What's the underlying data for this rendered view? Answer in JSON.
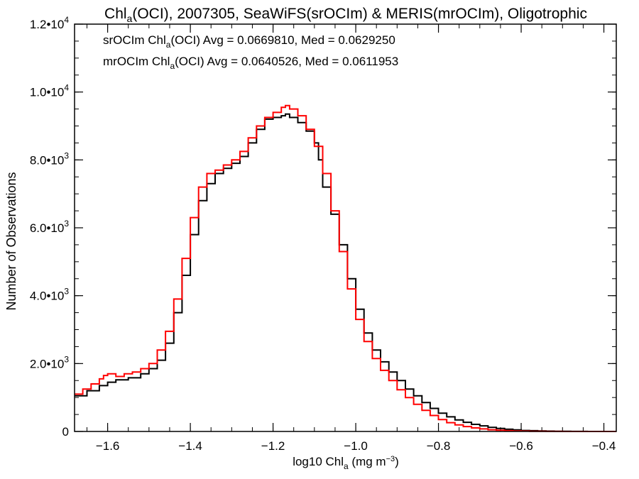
{
  "chart_data": {
    "type": "line",
    "title": {
      "main": "Chl",
      "sub": "a",
      "rest": "(OCI), 2007305, SeaWiFS(srOCIm) & MERIS(mrOCIm), Oligotrophic"
    },
    "xlabel": {
      "main": "log10 Chl",
      "sub": "a",
      "rest": " (mg m",
      "sup": "−3",
      "end": ")"
    },
    "ylabel": "Number of Observations",
    "xlim": [
      -1.68,
      -0.37
    ],
    "ylim": [
      0,
      12000
    ],
    "x_ticks": [
      {
        "value": -1.6,
        "label": "−1.6"
      },
      {
        "value": -1.4,
        "label": "−1.4"
      },
      {
        "value": -1.2,
        "label": "−1.2"
      },
      {
        "value": -1.0,
        "label": "−1.0"
      },
      {
        "value": -0.8,
        "label": "−0.8"
      },
      {
        "value": -0.6,
        "label": "−0.6"
      },
      {
        "value": -0.4,
        "label": "−0.4"
      }
    ],
    "y_ticks": [
      {
        "value": 0,
        "mant": "0",
        "exp": ""
      },
      {
        "value": 2000,
        "mant": "2.0•10",
        "exp": "3"
      },
      {
        "value": 4000,
        "mant": "4.0•10",
        "exp": "3"
      },
      {
        "value": 6000,
        "mant": "6.0•10",
        "exp": "3"
      },
      {
        "value": 8000,
        "mant": "8.0•10",
        "exp": "3"
      },
      {
        "value": 10000,
        "mant": "1.0•10",
        "exp": "4"
      },
      {
        "value": 12000,
        "mant": "1.2•10",
        "exp": "4"
      }
    ],
    "annotations": [
      {
        "color": "#000000",
        "p1": "srOCIm Chl",
        "sub": "a",
        "p2": "(OCI) Avg = 0.0669810, Med = 0.0629250"
      },
      {
        "color": "#ff0000",
        "p1": "mrOCIm Chl",
        "sub": "a",
        "p2": "(OCI) Avg = 0.0640526, Med = 0.0611953"
      }
    ],
    "series": [
      {
        "name": "srOCIm",
        "color": "#000000",
        "x": [
          -1.68,
          -1.65,
          -1.62,
          -1.6,
          -1.58,
          -1.55,
          -1.52,
          -1.5,
          -1.48,
          -1.46,
          -1.44,
          -1.42,
          -1.4,
          -1.38,
          -1.36,
          -1.34,
          -1.32,
          -1.3,
          -1.28,
          -1.26,
          -1.24,
          -1.22,
          -1.2,
          -1.18,
          -1.17,
          -1.16,
          -1.14,
          -1.12,
          -1.1,
          -1.09,
          -1.08,
          -1.06,
          -1.04,
          -1.02,
          -1.0,
          -0.98,
          -0.96,
          -0.94,
          -0.92,
          -0.9,
          -0.88,
          -0.86,
          -0.84,
          -0.82,
          -0.8,
          -0.78,
          -0.76,
          -0.74,
          -0.72,
          -0.7,
          -0.68,
          -0.66,
          -0.64,
          -0.62,
          -0.6,
          -0.58,
          -0.56,
          -0.54,
          -0.52,
          -0.5,
          -0.48,
          -0.46,
          -0.44,
          -0.42,
          -0.4,
          -0.38
        ],
        "y": [
          1050,
          1200,
          1350,
          1450,
          1520,
          1580,
          1700,
          1850,
          2100,
          2600,
          3500,
          4600,
          5800,
          6800,
          7300,
          7600,
          7750,
          7900,
          8100,
          8500,
          8900,
          9200,
          9250,
          9300,
          9350,
          9250,
          9100,
          8850,
          8500,
          8000,
          7200,
          6400,
          5500,
          4500,
          3600,
          2900,
          2400,
          2050,
          1750,
          1500,
          1250,
          1050,
          850,
          680,
          540,
          430,
          340,
          270,
          210,
          165,
          120,
          90,
          65,
          45,
          30,
          22,
          15,
          10,
          7,
          5,
          3,
          2,
          1,
          1,
          0,
          0
        ]
      },
      {
        "name": "mrOCIm",
        "color": "#ff0000",
        "x": [
          -1.68,
          -1.66,
          -1.64,
          -1.62,
          -1.61,
          -1.6,
          -1.58,
          -1.56,
          -1.54,
          -1.52,
          -1.5,
          -1.48,
          -1.46,
          -1.44,
          -1.42,
          -1.4,
          -1.38,
          -1.36,
          -1.34,
          -1.32,
          -1.3,
          -1.28,
          -1.26,
          -1.24,
          -1.22,
          -1.2,
          -1.18,
          -1.17,
          -1.16,
          -1.14,
          -1.12,
          -1.1,
          -1.08,
          -1.06,
          -1.04,
          -1.02,
          -1.0,
          -0.98,
          -0.96,
          -0.94,
          -0.92,
          -0.9,
          -0.88,
          -0.86,
          -0.84,
          -0.82,
          -0.8,
          -0.78,
          -0.76,
          -0.74,
          -0.72,
          -0.7,
          -0.68,
          -0.66,
          -0.64,
          -0.62,
          -0.6,
          -0.58,
          -0.56,
          -0.54,
          -0.52,
          -0.5,
          -0.48,
          -0.46,
          -0.44,
          -0.42,
          -0.4,
          -0.38
        ],
        "y": [
          1100,
          1250,
          1400,
          1550,
          1650,
          1700,
          1620,
          1700,
          1750,
          1850,
          2000,
          2400,
          2950,
          3900,
          5100,
          6300,
          7200,
          7600,
          7700,
          7850,
          8000,
          8250,
          8650,
          9000,
          9250,
          9400,
          9550,
          9600,
          9500,
          9300,
          8900,
          8400,
          7600,
          6500,
          5300,
          4200,
          3300,
          2650,
          2150,
          1800,
          1500,
          1230,
          1000,
          800,
          620,
          470,
          350,
          260,
          195,
          145,
          105,
          75,
          50,
          35,
          24,
          16,
          11,
          7,
          5,
          3,
          2,
          1,
          1,
          0,
          0,
          0,
          0,
          0
        ]
      }
    ]
  }
}
